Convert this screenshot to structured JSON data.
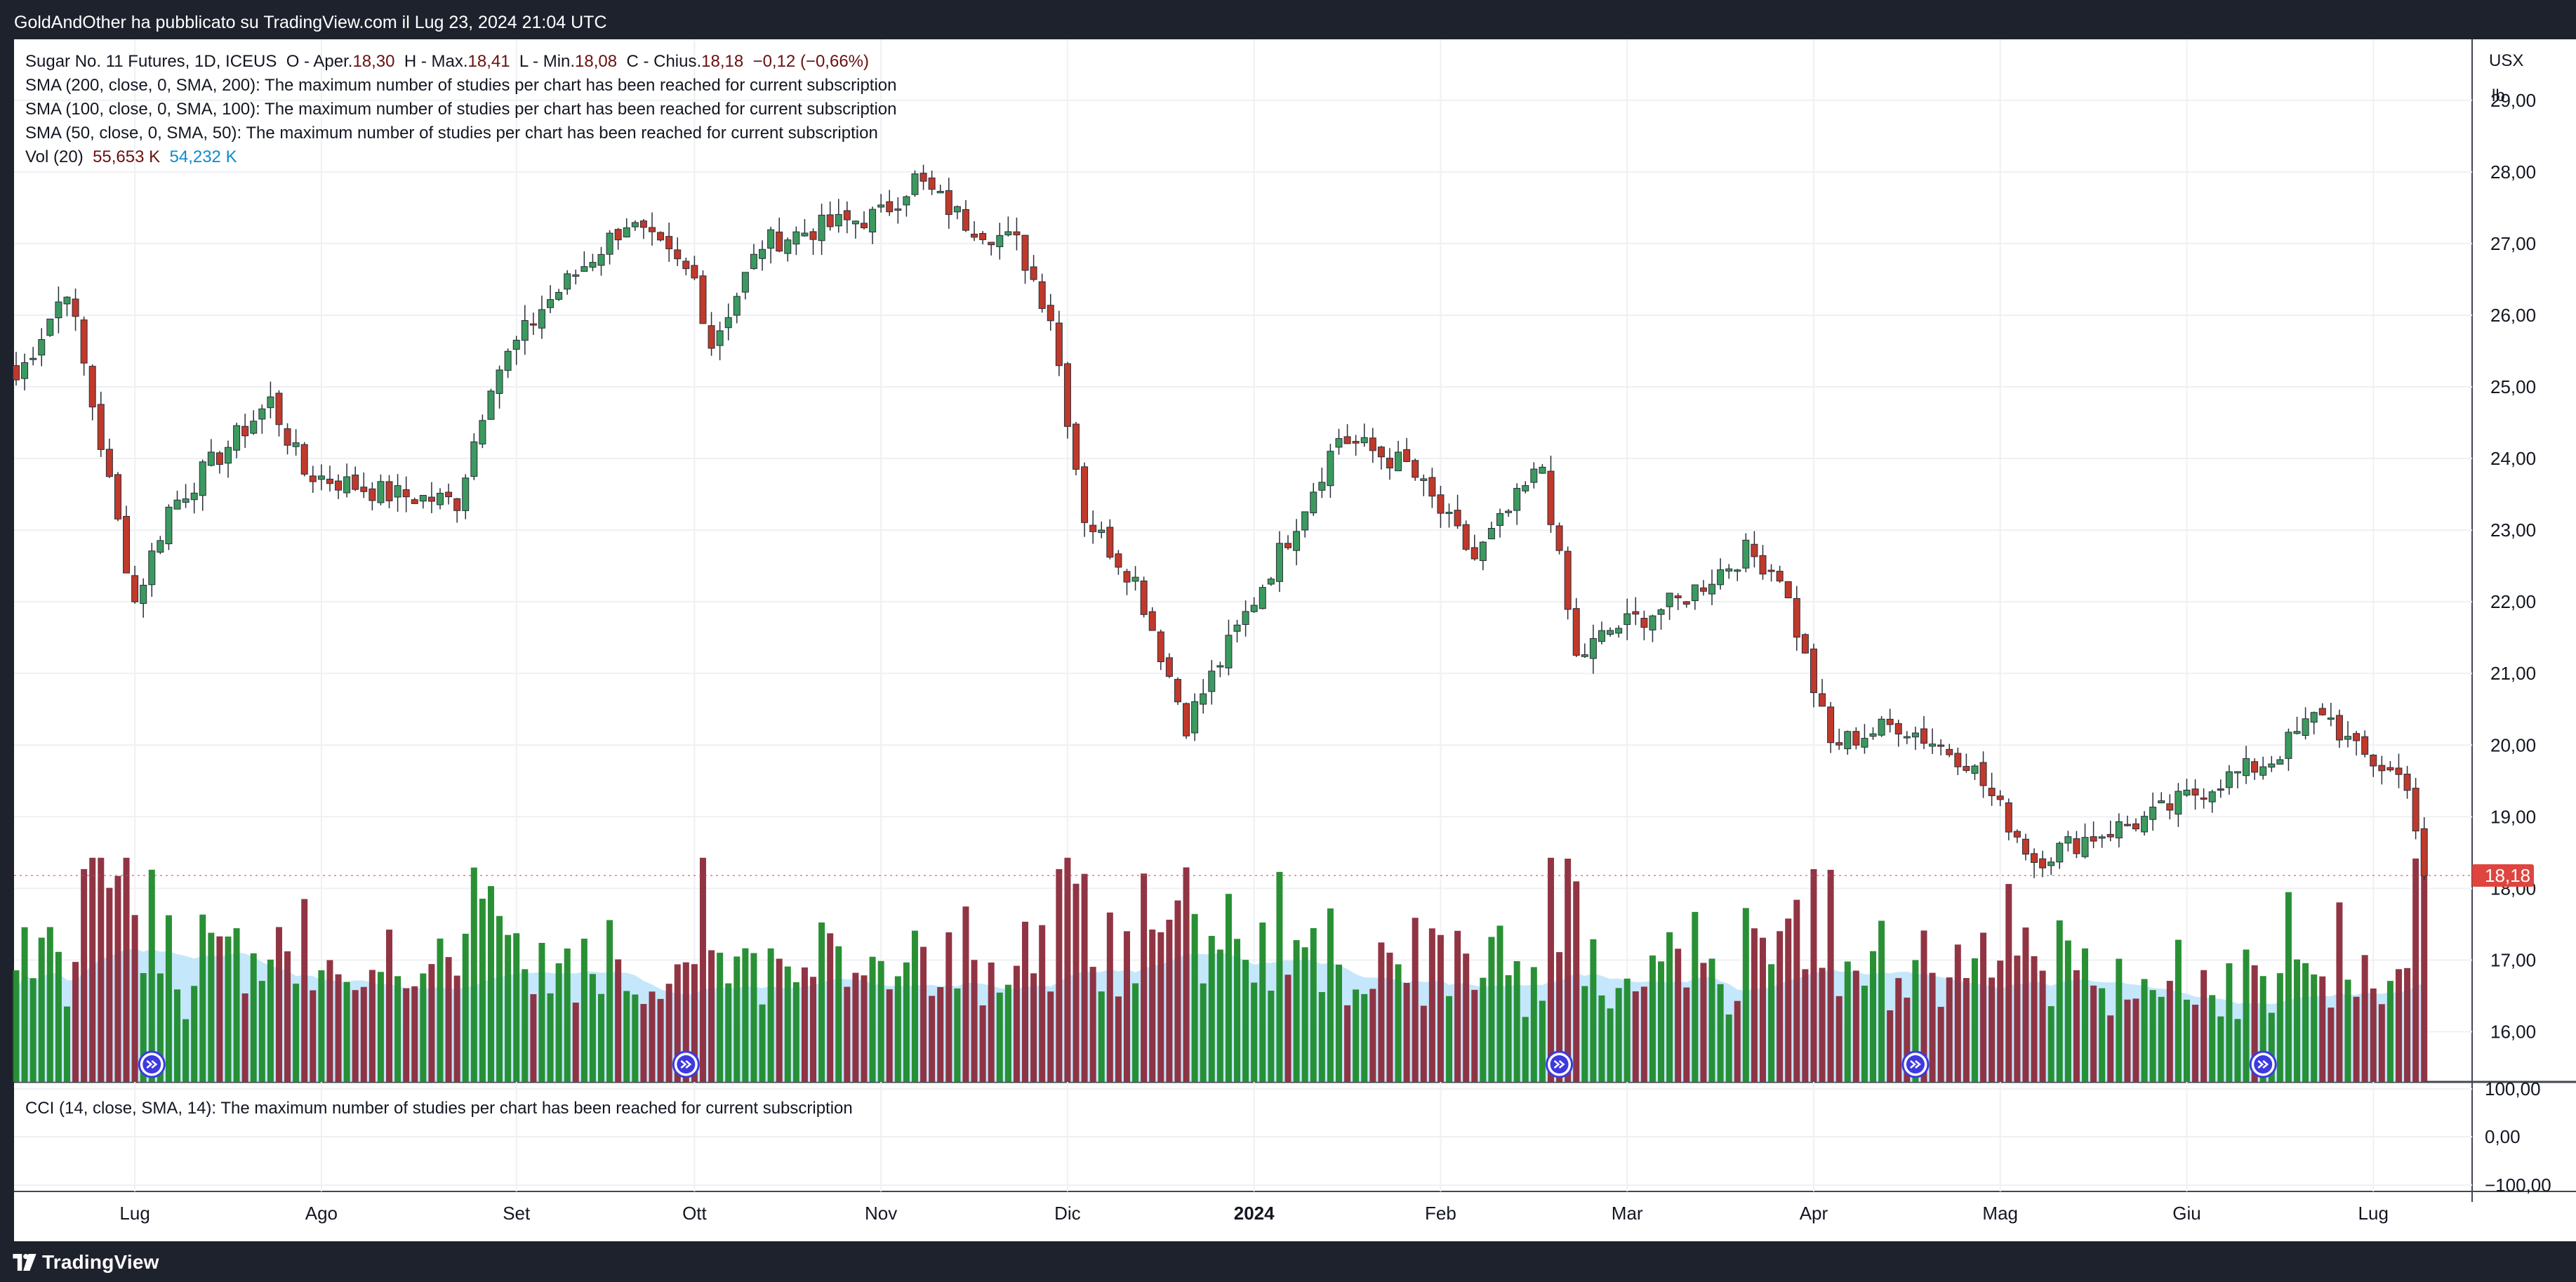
{
  "header": {
    "published_text": "GoldAndOther ha pubblicato su TradingView.com il Lug 23, 2024 21:04 UTC"
  },
  "legend": {
    "symbol": "Sugar No. 11 Futures, 1D, ICEUS",
    "open_label": "O - Aper.",
    "open": "18,30",
    "high_label": "H - Max.",
    "high": "18,41",
    "low_label": "L - Min.",
    "low": "18,08",
    "close_label": "C - Chius.",
    "close": "18,18",
    "change": "−0,12 (−0,66%)",
    "sma200": "SMA (200, close, 0, SMA, 200): The maximum number of studies per chart has been reached for current subscription",
    "sma100": "SMA (100, close, 0, SMA, 100): The maximum number of studies per chart has been reached for current subscription",
    "sma50": "SMA (50, close, 0, SMA, 50): The maximum number of studies per chart has been reached for current subscription",
    "vol_label": "Vol (20)",
    "vol_value": "55,653 K",
    "vol_ma": "54,232 K",
    "cci": "CCI (14, close, SMA, 14): The maximum number of studies per chart has been reached for current subscription"
  },
  "scale": {
    "currency": "USX",
    "unit": "lb",
    "last_price_label": "18,18"
  },
  "footer": {
    "brand": "TradingView"
  },
  "colors": {
    "up": "#26a69a",
    "up_fill": "#3b9a5f",
    "down": "#c0392b",
    "vol_up": "#1f8a2a",
    "vol_down": "#8b2a3a",
    "vol_ma": "#bfe4fb",
    "grid": "#eef0f3",
    "badge": "#e0443f"
  },
  "chart_data": {
    "type": "candlestick",
    "price_ticks": [
      "16,00",
      "17,00",
      "18,00",
      "19,00",
      "20,00",
      "21,00",
      "22,00",
      "23,00",
      "24,00",
      "25,00",
      "26,00",
      "27,00",
      "28,00",
      "29,00"
    ],
    "price_range": [
      15.3,
      29.85
    ],
    "cci_ticks": [
      "100,00",
      "0,00",
      "−100,00"
    ],
    "x_labels": [
      "Lug",
      "Ago",
      "Set",
      "Ott",
      "Nov",
      "Dic",
      "2024",
      "Feb",
      "Mar",
      "Apr",
      "Mag",
      "Giu",
      "Lug"
    ],
    "x_label_bars": [
      14,
      36,
      59,
      80,
      102,
      124,
      146,
      168,
      190,
      212,
      234,
      256,
      278
    ],
    "bars_total": 300,
    "events_at_bars": [
      16,
      79,
      182,
      224,
      265
    ],
    "anchors": [
      [
        0,
        25.1
      ],
      [
        6,
        26.4
      ],
      [
        14,
        22.0
      ],
      [
        18,
        23.3
      ],
      [
        30,
        24.8
      ],
      [
        34,
        23.8
      ],
      [
        44,
        23.5
      ],
      [
        52,
        23.4
      ],
      [
        56,
        25.1
      ],
      [
        62,
        26.1
      ],
      [
        72,
        27.3
      ],
      [
        80,
        26.5
      ],
      [
        82,
        25.6
      ],
      [
        88,
        27.0
      ],
      [
        94,
        27.2
      ],
      [
        102,
        27.4
      ],
      [
        106,
        27.9
      ],
      [
        112,
        27.3
      ],
      [
        118,
        27.0
      ],
      [
        122,
        26.0
      ],
      [
        126,
        23.2
      ],
      [
        132,
        22.3
      ],
      [
        138,
        20.3
      ],
      [
        144,
        21.6
      ],
      [
        150,
        22.9
      ],
      [
        156,
        24.3
      ],
      [
        164,
        23.9
      ],
      [
        172,
        22.6
      ],
      [
        180,
        23.9
      ],
      [
        184,
        21.2
      ],
      [
        188,
        21.6
      ],
      [
        196,
        22.0
      ],
      [
        204,
        22.7
      ],
      [
        208,
        22.4
      ],
      [
        214,
        20.0
      ],
      [
        222,
        20.3
      ],
      [
        230,
        19.8
      ],
      [
        238,
        18.4
      ],
      [
        244,
        18.7
      ],
      [
        252,
        19.0
      ],
      [
        258,
        19.4
      ],
      [
        266,
        19.8
      ],
      [
        272,
        20.5
      ],
      [
        276,
        19.9
      ],
      [
        282,
        19.5
      ],
      [
        284,
        18.18
      ]
    ],
    "volume_top": 18.7,
    "volume_bottom": 15.3
  }
}
